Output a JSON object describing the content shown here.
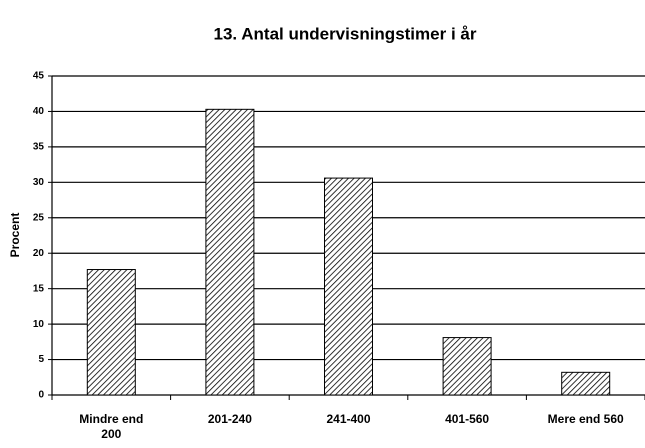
{
  "chart_data": {
    "type": "bar",
    "title": "13. Antal undervisningstimer i år",
    "y_label": "Procent",
    "categories": [
      "Mindre end 200",
      "201-240",
      "241-400",
      "401-560",
      "Mere end 560"
    ],
    "values": [
      17.7,
      40.3,
      30.6,
      8.1,
      3.2
    ],
    "color": "#000000",
    "ylim": [
      0,
      45
    ],
    "yticks": [
      0,
      5,
      10,
      15,
      20,
      25,
      30,
      35,
      40,
      45
    ],
    "grid": true
  }
}
